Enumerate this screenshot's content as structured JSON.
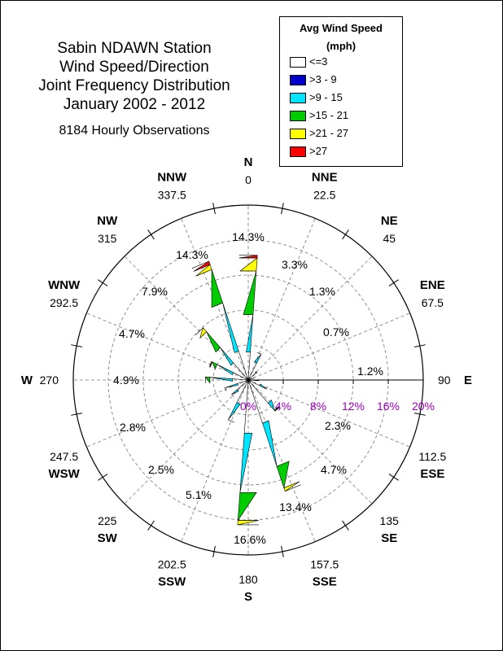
{
  "chart_data": {
    "type": "wind-rose",
    "title_lines": [
      "Sabin NDAWN Station",
      "Wind Speed/Direction",
      "Joint Frequency Distribution",
      "January 2002 - 2012"
    ],
    "observations": "8184 Hourly Observations",
    "legend_title": [
      "Avg Wind Speed",
      "(mph)"
    ],
    "bins": [
      {
        "label": "<=3",
        "color": "#ffffff"
      },
      {
        "label": ">3 - 9",
        "color": "#0000cc"
      },
      {
        "label": ">9 - 15",
        "color": "#00e5ff"
      },
      {
        "label": ">15 - 21",
        "color": "#00cc00"
      },
      {
        "label": ">21 - 27",
        "color": "#ffff00"
      },
      {
        "label": ">27",
        "color": "#ff0000"
      }
    ],
    "radial_axis": {
      "max_percent": 20,
      "ticks": [
        "0%",
        "4%",
        "8%",
        "12%",
        "16%",
        "20%"
      ],
      "tick_color": "#a000c0"
    },
    "compass_points": [
      {
        "abbr": "N",
        "deg": "0"
      },
      {
        "abbr": "NNE",
        "deg": "22.5"
      },
      {
        "abbr": "NE",
        "deg": "45"
      },
      {
        "abbr": "ENE",
        "deg": "67.5"
      },
      {
        "abbr": "E",
        "deg": "90"
      },
      {
        "abbr": "ESE",
        "deg": "112.5"
      },
      {
        "abbr": "SE",
        "deg": "135"
      },
      {
        "abbr": "SSE",
        "deg": "157.5"
      },
      {
        "abbr": "S",
        "deg": "180"
      },
      {
        "abbr": "SSW",
        "deg": "202.5"
      },
      {
        "abbr": "SW",
        "deg": "225"
      },
      {
        "abbr": "WSW",
        "deg": "247.5"
      },
      {
        "abbr": "W",
        "deg": "270"
      },
      {
        "abbr": "WNW",
        "deg": "292.5"
      },
      {
        "abbr": "NW",
        "deg": "315"
      },
      {
        "abbr": "NNW",
        "deg": "337.5"
      }
    ],
    "sectors": [
      {
        "dir": "N",
        "total": "14.3%",
        "cumulative": [
          0.0,
          3.2,
          7.5,
          12.5,
          14.0,
          14.3
        ]
      },
      {
        "dir": "NNE",
        "total": "3.3%",
        "cumulative": [
          0.0,
          2.2,
          3.3,
          3.3,
          3.3,
          3.3
        ]
      },
      {
        "dir": "NE",
        "total": "1.3%",
        "cumulative": [
          0.0,
          1.2,
          1.3,
          1.3,
          1.3,
          1.3
        ]
      },
      {
        "dir": "ENE",
        "total": "0.7%",
        "cumulative": [
          0.0,
          0.7,
          0.7,
          0.7,
          0.7,
          0.7
        ]
      },
      {
        "dir": "E",
        "total": "1.2%",
        "cumulative": [
          0.0,
          1.2,
          1.2,
          1.2,
          1.2,
          1.2
        ]
      },
      {
        "dir": "ESE",
        "total": "2.3%",
        "cumulative": [
          0.0,
          1.5,
          2.3,
          2.3,
          2.3,
          2.3
        ]
      },
      {
        "dir": "SE",
        "total": "4.7%",
        "cumulative": [
          0.0,
          3.5,
          4.6,
          4.7,
          4.7,
          4.7
        ]
      },
      {
        "dir": "SSE",
        "total": "13.4%",
        "cumulative": [
          0.0,
          5.2,
          10.4,
          13.0,
          13.4,
          13.4
        ]
      },
      {
        "dir": "S",
        "total": "16.6%",
        "cumulative": [
          0.0,
          6.1,
          12.9,
          16.1,
          16.6,
          16.6
        ]
      },
      {
        "dir": "SSW",
        "total": "5.1%",
        "cumulative": [
          0.0,
          2.9,
          5.1,
          5.1,
          5.1,
          5.1
        ]
      },
      {
        "dir": "SW",
        "total": "2.5%",
        "cumulative": [
          0.0,
          1.7,
          2.5,
          2.5,
          2.5,
          2.5
        ]
      },
      {
        "dir": "WSW",
        "total": "2.8%",
        "cumulative": [
          0.0,
          1.3,
          2.8,
          2.8,
          2.8,
          2.8
        ]
      },
      {
        "dir": "W",
        "total": "4.9%",
        "cumulative": [
          0.0,
          1.8,
          4.4,
          4.9,
          4.9,
          4.9
        ]
      },
      {
        "dir": "WNW",
        "total": "4.7%",
        "cumulative": [
          0.0,
          1.9,
          4.0,
          4.6,
          4.7,
          4.7
        ]
      },
      {
        "dir": "NW",
        "total": "7.9%",
        "cumulative": [
          0.0,
          2.6,
          4.9,
          7.3,
          7.9,
          7.9
        ]
      },
      {
        "dir": "NNW",
        "total": "14.3%",
        "cumulative": [
          0.0,
          3.5,
          9.3,
          13.3,
          13.9,
          14.3
        ]
      }
    ]
  }
}
